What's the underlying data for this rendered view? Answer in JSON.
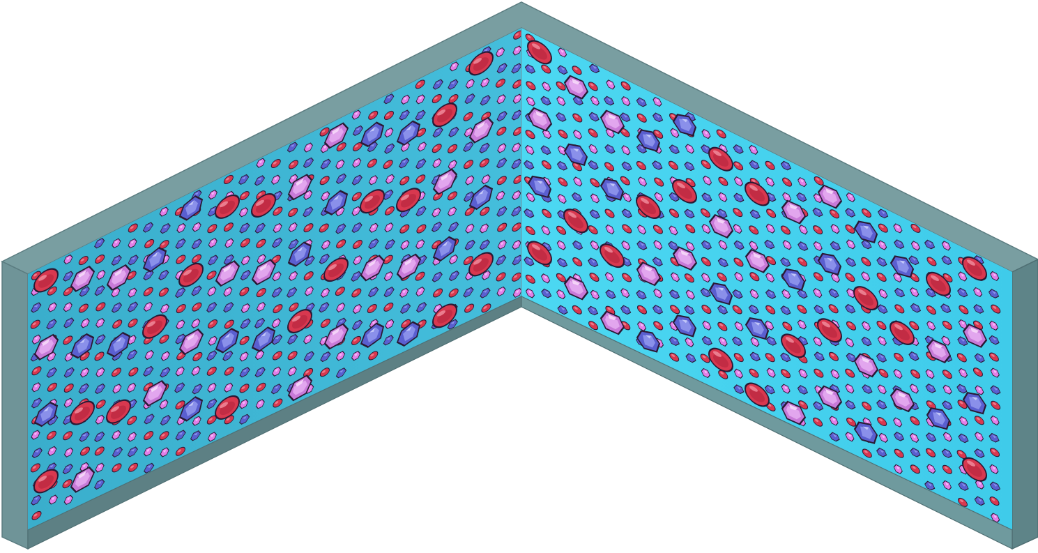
{
  "scene": {
    "type": "isometric-room-walls",
    "wallpaper": "gem-pattern"
  },
  "colors": {
    "background": "#ffffff",
    "frame_top": "#799ea1",
    "frame_top_stroke": "#5b7c80",
    "frame_front": "#6b9296",
    "frame_base": "#5d8084",
    "left_wall_fill": "#3eb6d6",
    "right_wall_fill": "#45d2ef",
    "gem_red": "#d8384f",
    "gem_blue": "#5a5fd0",
    "gem_violet": "#c87ad8",
    "gem_pink": "#e37fe8",
    "gem_outline": "#2a1a35"
  },
  "gems": {
    "large_kinds": [
      "red-oval-gem",
      "violet-hexagon-gem",
      "blue-crystal-gem"
    ],
    "small_kinds": [
      "red-small-gem",
      "blue-small-gem",
      "pink-small-gem"
    ]
  }
}
